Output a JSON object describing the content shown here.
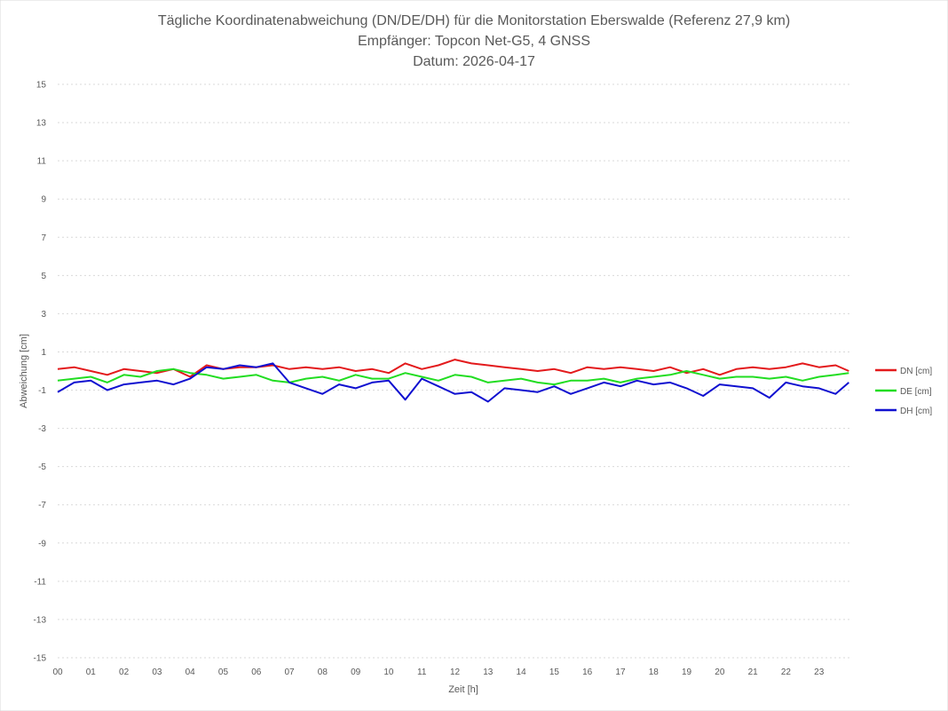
{
  "chart_data": {
    "type": "line",
    "title_lines": [
      "Tägliche Koordinatenabweichung (DN/DE/DH) für die Monitorstation Eberswalde (Referenz 27,9 km)",
      "Empfänger: Topcon Net-G5, 4 GNSS",
      "Datum: 2026-04-17"
    ],
    "xlabel": "Zeit [h]",
    "ylabel": "Abweichung [cm]",
    "xlim": [
      0,
      24
    ],
    "ylim": [
      -15,
      15
    ],
    "x_ticks": [
      "00",
      "01",
      "02",
      "03",
      "04",
      "05",
      "06",
      "07",
      "08",
      "09",
      "10",
      "11",
      "12",
      "13",
      "14",
      "15",
      "16",
      "17",
      "18",
      "19",
      "20",
      "21",
      "22",
      "23"
    ],
    "y_ticks": [
      15,
      13,
      11,
      9,
      7,
      5,
      3,
      1,
      -1,
      -3,
      -5,
      -7,
      -9,
      -11,
      -13,
      -15
    ],
    "grid": true,
    "legend_position": "right",
    "x": [
      0,
      0.5,
      1,
      1.5,
      2,
      2.5,
      3,
      3.5,
      4,
      4.5,
      5,
      5.5,
      6,
      6.5,
      7,
      7.5,
      8,
      8.5,
      9,
      9.5,
      10,
      10.5,
      11,
      11.5,
      12,
      12.5,
      13,
      13.5,
      14,
      14.5,
      15,
      15.5,
      16,
      16.5,
      17,
      17.5,
      18,
      18.5,
      19,
      19.5,
      20,
      20.5,
      21,
      21.5,
      22,
      22.5,
      23,
      23.5,
      23.9
    ],
    "series": [
      {
        "name": "DN [cm]",
        "color": "#e31a1c",
        "values": [
          0.1,
          0.2,
          0.0,
          -0.2,
          0.1,
          0.0,
          -0.1,
          0.1,
          -0.3,
          0.3,
          0.1,
          0.2,
          0.2,
          0.3,
          0.1,
          0.2,
          0.1,
          0.2,
          0.0,
          0.1,
          -0.1,
          0.4,
          0.1,
          0.3,
          0.6,
          0.4,
          0.3,
          0.2,
          0.1,
          0.0,
          0.1,
          -0.1,
          0.2,
          0.1,
          0.2,
          0.1,
          0.0,
          0.2,
          -0.1,
          0.1,
          -0.2,
          0.1,
          0.2,
          0.1,
          0.2,
          0.4,
          0.2,
          0.3,
          0.0
        ]
      },
      {
        "name": "DE [cm]",
        "color": "#22dd22",
        "values": [
          -0.5,
          -0.4,
          -0.3,
          -0.6,
          -0.2,
          -0.3,
          0.0,
          0.1,
          -0.1,
          -0.2,
          -0.4,
          -0.3,
          -0.2,
          -0.5,
          -0.6,
          -0.4,
          -0.3,
          -0.5,
          -0.2,
          -0.4,
          -0.4,
          -0.1,
          -0.3,
          -0.5,
          -0.2,
          -0.3,
          -0.6,
          -0.5,
          -0.4,
          -0.6,
          -0.7,
          -0.5,
          -0.5,
          -0.4,
          -0.6,
          -0.4,
          -0.3,
          -0.2,
          0.0,
          -0.2,
          -0.4,
          -0.3,
          -0.3,
          -0.4,
          -0.3,
          -0.5,
          -0.3,
          -0.2,
          -0.1
        ]
      },
      {
        "name": "DH [cm]",
        "color": "#1010d0",
        "values": [
          -1.1,
          -0.6,
          -0.5,
          -1.0,
          -0.7,
          -0.6,
          -0.5,
          -0.7,
          -0.4,
          0.2,
          0.1,
          0.3,
          0.2,
          0.4,
          -0.6,
          -0.9,
          -1.2,
          -0.7,
          -0.9,
          -0.6,
          -0.5,
          -1.5,
          -0.4,
          -0.8,
          -1.2,
          -1.1,
          -1.6,
          -0.9,
          -1.0,
          -1.1,
          -0.8,
          -1.2,
          -0.9,
          -0.6,
          -0.8,
          -0.5,
          -0.7,
          -0.6,
          -0.9,
          -1.3,
          -0.7,
          -0.8,
          -0.9,
          -1.4,
          -0.6,
          -0.8,
          -0.9,
          -1.2,
          -0.6
        ]
      }
    ]
  }
}
